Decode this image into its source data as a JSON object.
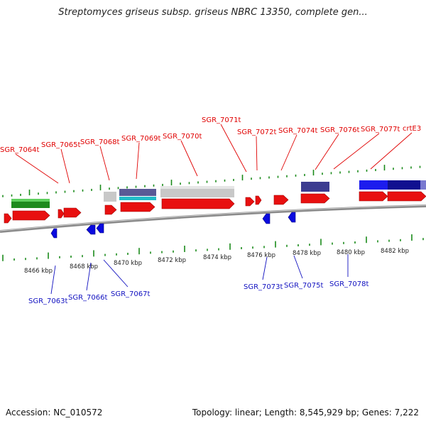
{
  "title": "Streptomyces griseus subsp. griseus NBRC 13350, complete gen...",
  "footer": {
    "accession": "Accession: NC_010572",
    "topology": "Topology: linear; Length: 8,545,929 bp; Genes: 7,222"
  },
  "colors": {
    "forward_label": "#e00000",
    "reverse_label": "#1010c0",
    "forward_gene": "#e81010",
    "reverse_gene": "#0a0adf",
    "tick": "#1a8a1a",
    "axis": "#888888"
  },
  "top_labels": [
    "SGR_7064t",
    "SGR_7065t",
    "SGR_7068t",
    "SGR_7069t",
    "SGR_7070t",
    "SGR_7071t",
    "SGR_7072t",
    "SGR_7074t",
    "SGR_7076t",
    "SGR_7077t",
    "crtE3"
  ],
  "bottom_labels": [
    "SGR_7063t",
    "SGR_7066t",
    "SGR_7067t",
    "SGR_7073t",
    "SGR_7075t",
    "SGR_7078t"
  ],
  "kbp_ticks": [
    "8466 kbp",
    "8468 kbp",
    "8470 kbp",
    "8472 kbp",
    "8474 kbp",
    "8476 kbp",
    "8478 kbp",
    "8480 kbp",
    "8482 kbp"
  ]
}
